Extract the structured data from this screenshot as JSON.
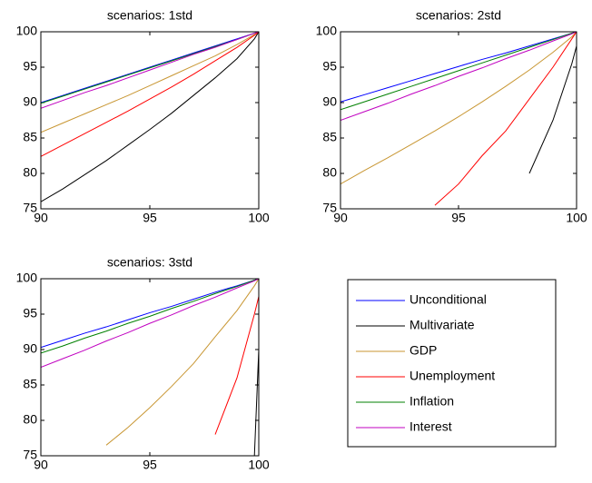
{
  "chart_data": [
    {
      "type": "line",
      "title": "scenarios: 1std",
      "x": [
        90,
        91,
        92,
        93,
        94,
        95,
        96,
        97,
        98,
        99,
        99.8,
        100
      ],
      "xlim": [
        90,
        100
      ],
      "xticks": [
        90,
        95,
        100
      ],
      "ylim": [
        75,
        100
      ],
      "yticks": [
        75,
        80,
        85,
        90,
        95,
        100
      ],
      "series": [
        {
          "name": "Unconditional",
          "color": "#0000ff",
          "values": [
            90,
            91,
            92,
            93,
            94,
            95,
            96,
            97,
            98,
            99,
            99.8,
            100
          ]
        },
        {
          "name": "Multivariate",
          "color": "#000000",
          "values": [
            76,
            77.8,
            79.8,
            81.8,
            84,
            86.2,
            88.5,
            91,
            93.5,
            96.2,
            99,
            100
          ]
        },
        {
          "name": "GDP",
          "color": "#c89632",
          "values": [
            85.8,
            87.1,
            88.4,
            89.7,
            91.0,
            92.4,
            93.8,
            95.2,
            96.6,
            98.2,
            99.6,
            100
          ]
        },
        {
          "name": "Unemployment",
          "color": "#ff0000",
          "values": [
            82.4,
            84.0,
            85.6,
            87.2,
            88.8,
            90.5,
            92.2,
            94.0,
            95.9,
            97.8,
            99.5,
            100
          ]
        },
        {
          "name": "Inflation",
          "color": "#008000",
          "values": [
            89.9,
            90.9,
            91.9,
            92.9,
            93.9,
            94.9,
            95.9,
            96.9,
            97.9,
            98.9,
            99.8,
            100
          ]
        },
        {
          "name": "Interest",
          "color": "#c000c0",
          "values": [
            89.2,
            90.3,
            91.4,
            92.4,
            93.5,
            94.6,
            95.7,
            96.8,
            97.8,
            98.9,
            99.8,
            100
          ]
        }
      ]
    },
    {
      "type": "line",
      "title": "scenarios: 2std",
      "x": [
        90,
        91,
        92,
        93,
        94,
        95,
        96,
        97,
        98,
        99,
        99.8,
        100
      ],
      "xlim": [
        90,
        100
      ],
      "xticks": [
        90,
        95,
        100
      ],
      "ylim": [
        75,
        100
      ],
      "yticks": [
        75,
        80,
        85,
        90,
        95,
        100
      ],
      "series": [
        {
          "color": "#0000ff",
          "values": [
            90.1,
            91.1,
            92.1,
            93.1,
            94.1,
            95.1,
            96.1,
            97,
            98,
            99,
            99.8,
            100
          ]
        },
        {
          "color": "#000000",
          "values": [
            null,
            null,
            null,
            null,
            null,
            null,
            null,
            null,
            80,
            87.5,
            95.5,
            98
          ]
        },
        {
          "color": "#c89632",
          "values": [
            78.5,
            80.4,
            82.2,
            84.1,
            86.0,
            88.0,
            90.1,
            92.3,
            94.6,
            97.1,
            99.3,
            100
          ]
        },
        {
          "color": "#ff0000",
          "values": [
            null,
            null,
            null,
            null,
            75.5,
            78.5,
            82.5,
            86,
            90.5,
            95,
            99,
            100
          ]
        },
        {
          "color": "#008000",
          "values": [
            89,
            90.1,
            91.2,
            92.3,
            93.4,
            94.5,
            95.6,
            96.7,
            97.8,
            98.9,
            99.8,
            100
          ]
        },
        {
          "color": "#c000c0",
          "values": [
            87.5,
            88.7,
            89.9,
            91.2,
            92.4,
            93.7,
            94.9,
            96.2,
            97.4,
            98.7,
            99.7,
            100
          ]
        }
      ]
    },
    {
      "type": "line",
      "title": "scenarios: 3std",
      "x": [
        90,
        91,
        92,
        93,
        94,
        95,
        96,
        97,
        98,
        99,
        99.8,
        100
      ],
      "xlim": [
        90,
        100
      ],
      "xticks": [
        90,
        95,
        100
      ],
      "ylim": [
        75,
        100
      ],
      "yticks": [
        75,
        80,
        85,
        90,
        95,
        100
      ],
      "series": [
        {
          "color": "#0000ff",
          "values": [
            90.3,
            91.3,
            92.3,
            93.2,
            94.2,
            95.2,
            96.1,
            97.1,
            98.1,
            99,
            99.8,
            100
          ]
        },
        {
          "color": "#000000",
          "values": [
            null,
            null,
            null,
            null,
            null,
            null,
            null,
            null,
            null,
            null,
            75,
            90
          ]
        },
        {
          "color": "#c89632",
          "values": [
            null,
            null,
            null,
            76.5,
            79,
            81.8,
            84.8,
            88,
            91.8,
            95.5,
            99,
            100
          ]
        },
        {
          "color": "#ff0000",
          "values": [
            null,
            null,
            null,
            null,
            null,
            null,
            null,
            null,
            78,
            86,
            95,
            97.5
          ]
        },
        {
          "color": "#008000",
          "values": [
            89.5,
            90.5,
            91.6,
            92.6,
            93.7,
            94.7,
            95.8,
            96.8,
            97.9,
            98.9,
            99.8,
            100
          ]
        },
        {
          "color": "#c000c0",
          "values": [
            87.5,
            88.7,
            89.9,
            91.2,
            92.4,
            93.7,
            94.9,
            96.2,
            97.4,
            98.7,
            99.7,
            100
          ]
        }
      ]
    }
  ]
}
